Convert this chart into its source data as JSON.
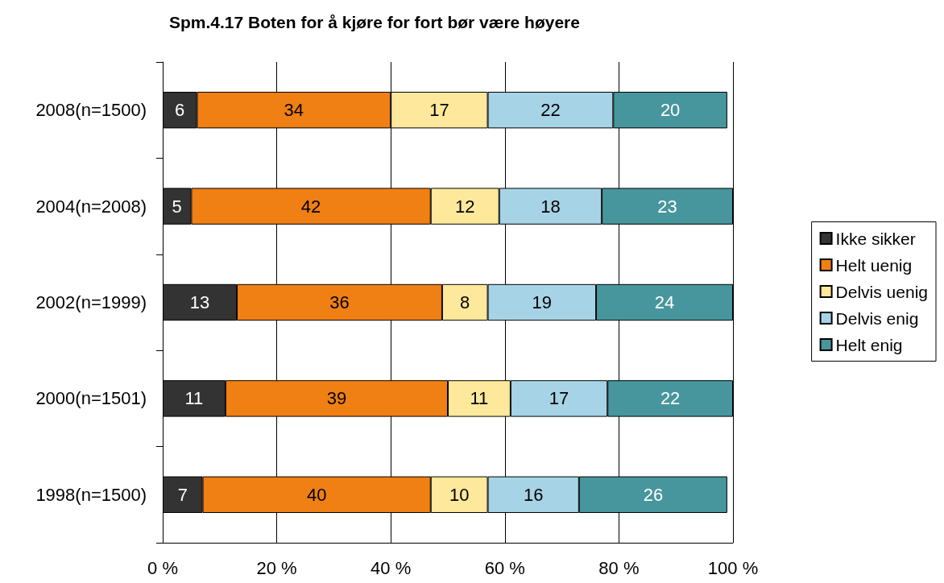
{
  "chart_data": {
    "type": "bar",
    "title": "Spm.4.17 Boten for å kjøre for fort bør være høyere",
    "orientation": "horizontal",
    "stacked": true,
    "categories": [
      "2008(n=1500)",
      "2004(n=2008)",
      "2002(n=1999)",
      "2000(n=1501)",
      "1998(n=1500)"
    ],
    "series": [
      {
        "name": "Ikke sikker",
        "color": "#333333",
        "values": [
          6,
          5,
          13,
          11,
          7
        ]
      },
      {
        "name": "Helt uenig",
        "color": "#f07f14",
        "values": [
          34,
          42,
          36,
          39,
          40
        ]
      },
      {
        "name": "Delvis uenig",
        "color": "#fde89b",
        "values": [
          17,
          12,
          8,
          11,
          10
        ]
      },
      {
        "name": "Delvis enig",
        "color": "#a6d3e5",
        "values": [
          22,
          18,
          19,
          17,
          16
        ]
      },
      {
        "name": "Helt enig",
        "color": "#47969d",
        "values": [
          20,
          23,
          24,
          22,
          26
        ]
      }
    ],
    "xlim": [
      0,
      100
    ],
    "xticks": [
      {
        "value": 0,
        "label": "0 %"
      },
      {
        "value": 20,
        "label": "20 %"
      },
      {
        "value": 40,
        "label": "40 %"
      },
      {
        "value": 60,
        "label": "60 %"
      },
      {
        "value": 80,
        "label": "80 %"
      },
      {
        "value": 100,
        "label": "100 %"
      }
    ],
    "grid": "x",
    "legend": "right",
    "data_labels": true
  }
}
